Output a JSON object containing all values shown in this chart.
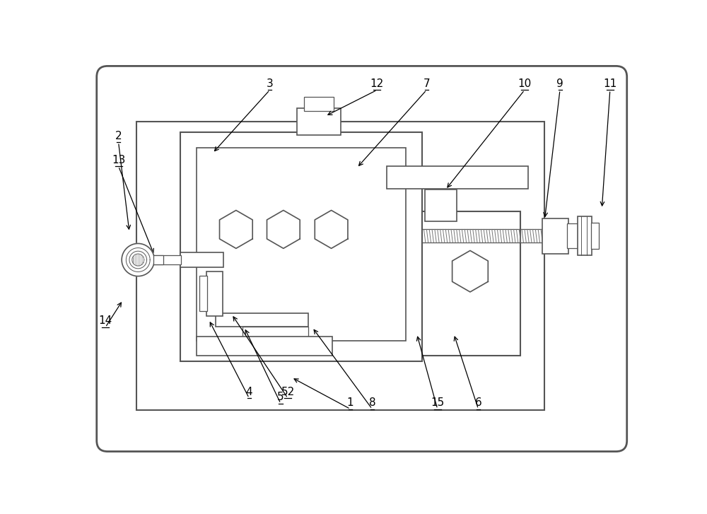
{
  "fig_w": 10.0,
  "fig_h": 7.27,
  "annotations": [
    [
      "2",
      52,
      148,
      72,
      313
    ],
    [
      "13",
      52,
      192,
      118,
      356
    ],
    [
      "3",
      330,
      52,
      225,
      168
    ],
    [
      "12",
      527,
      52,
      432,
      100
    ],
    [
      "7",
      618,
      52,
      490,
      195
    ],
    [
      "10",
      798,
      52,
      653,
      235
    ],
    [
      "9",
      863,
      52,
      835,
      290
    ],
    [
      "11",
      955,
      52,
      940,
      270
    ],
    [
      "4",
      292,
      618,
      218,
      474
    ],
    [
      "52",
      363,
      618,
      260,
      464
    ],
    [
      "5",
      350,
      628,
      283,
      488
    ],
    [
      "1",
      478,
      638,
      370,
      580
    ],
    [
      "8",
      518,
      638,
      408,
      488
    ],
    [
      "15",
      638,
      638,
      600,
      500
    ],
    [
      "6",
      713,
      638,
      668,
      500
    ],
    [
      "14",
      28,
      488,
      60,
      438
    ]
  ]
}
